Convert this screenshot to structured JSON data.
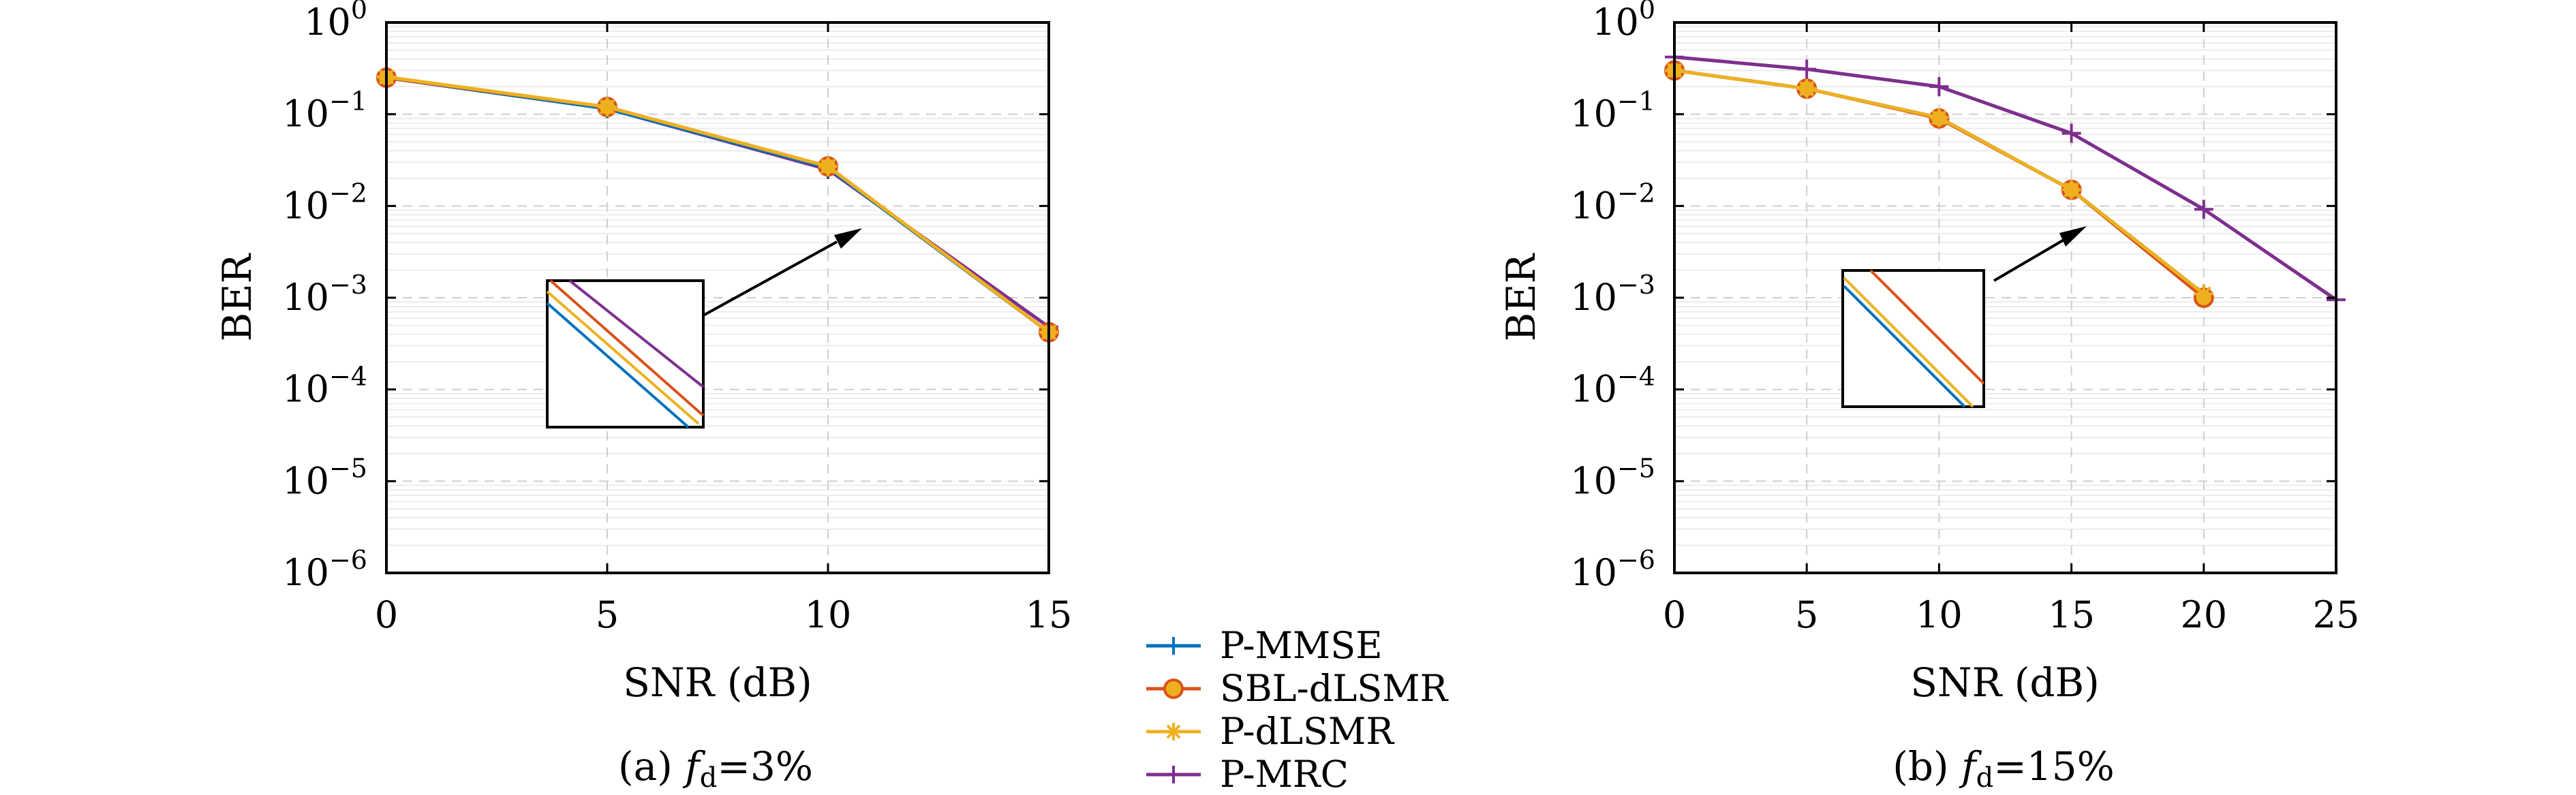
{
  "legend": {
    "entries": [
      "P-MMSE",
      "SBL-dLSMR",
      "P-dLSMR",
      "P-MRC"
    ]
  },
  "captions": [
    {
      "prefix": "(a) ",
      "var": "f",
      "sub": "d",
      "rest": "=3%"
    },
    {
      "prefix": "(b) ",
      "var": "f",
      "sub": "d",
      "rest": "=15%"
    }
  ],
  "colors": {
    "P-MMSE": "#0072BD",
    "SBL-dLSMR": "#D95319",
    "P-dLSMR": "#EDB120",
    "P-MRC": "#7E2F8E"
  },
  "markers": {
    "P-MMSE": "plus",
    "SBL-dLSMR": "circle",
    "P-dLSMR": "asterisk",
    "P-MRC": "plus"
  },
  "chart_data": [
    {
      "type": "line",
      "xlabel": "SNR (dB)",
      "ylabel": "BER",
      "yscale": "log",
      "xlim": [
        0,
        15
      ],
      "ylim": [
        1e-06,
        1
      ],
      "xticks": [
        0,
        5,
        10,
        15
      ],
      "ytick_exponents": [
        0,
        -1,
        -2,
        -3,
        -4,
        -5,
        -6
      ],
      "grid": true,
      "series": [
        {
          "name": "P-MMSE",
          "x": [
            0,
            5,
            10,
            15
          ],
          "y": [
            0.25,
            0.115,
            0.026,
            0.00042
          ]
        },
        {
          "name": "SBL-dLSMR",
          "x": [
            0,
            5,
            10,
            15
          ],
          "y": [
            0.25,
            0.12,
            0.027,
            0.00042
          ]
        },
        {
          "name": "P-dLSMR",
          "x": [
            0,
            5,
            10,
            15
          ],
          "y": [
            0.255,
            0.12,
            0.027,
            0.00042
          ]
        },
        {
          "name": "P-MRC",
          "x": [
            0,
            5,
            10,
            15
          ],
          "y": [
            0.25,
            0.115,
            0.025,
            0.00048
          ]
        }
      ]
    },
    {
      "type": "line",
      "xlabel": "SNR (dB)",
      "ylabel": "BER",
      "yscale": "log",
      "xlim": [
        0,
        25
      ],
      "ylim": [
        1e-06,
        1
      ],
      "xticks": [
        0,
        5,
        10,
        15,
        20,
        25
      ],
      "ytick_exponents": [
        0,
        -1,
        -2,
        -3,
        -4,
        -5,
        -6
      ],
      "grid": true,
      "series": [
        {
          "name": "P-MMSE",
          "x": [
            0,
            5,
            10,
            15,
            20
          ],
          "y": [
            0.3,
            0.19,
            0.092,
            0.015,
            0.0011
          ]
        },
        {
          "name": "SBL-dLSMR",
          "x": [
            0,
            5,
            10,
            15,
            20
          ],
          "y": [
            0.3,
            0.19,
            0.09,
            0.015,
            0.001
          ]
        },
        {
          "name": "P-dLSMR",
          "x": [
            0,
            5,
            10,
            15,
            20
          ],
          "y": [
            0.3,
            0.19,
            0.092,
            0.015,
            0.0011
          ]
        },
        {
          "name": "P-MRC",
          "x": [
            0,
            5,
            10,
            15,
            20,
            25
          ],
          "y": [
            0.42,
            0.31,
            0.2,
            0.062,
            0.0092,
            0.00095
          ]
        }
      ]
    }
  ]
}
